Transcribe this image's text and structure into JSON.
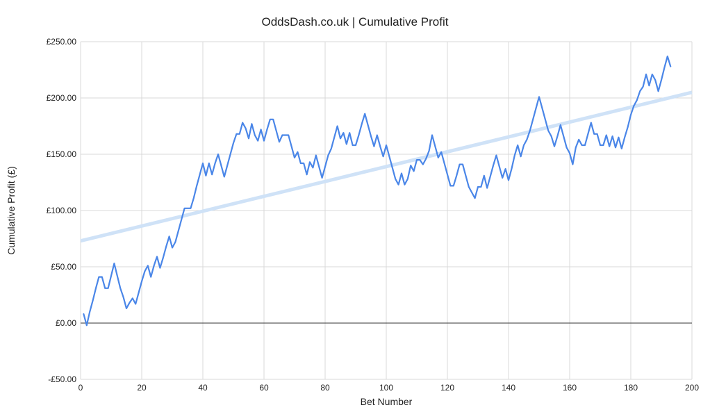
{
  "chart_data": {
    "type": "line",
    "title": "OddsDash.co.uk | Cumulative Profit",
    "xlabel": "Bet Number",
    "ylabel": "Cumulative Profit (£)",
    "xlim": [
      0,
      200
    ],
    "ylim": [
      -50,
      250
    ],
    "x_ticks": [
      0,
      20,
      40,
      60,
      80,
      100,
      120,
      140,
      160,
      180,
      200
    ],
    "x_tick_labels": [
      "0",
      "20",
      "40",
      "60",
      "80",
      "100",
      "120",
      "140",
      "160",
      "180",
      "200"
    ],
    "y_ticks": [
      -50,
      0,
      50,
      100,
      150,
      200,
      250
    ],
    "y_tick_labels": [
      "-£50.00",
      "£0.00",
      "£50.00",
      "£100.00",
      "£150.00",
      "£200.00",
      "£250.00"
    ],
    "grid": true,
    "legend": "none",
    "colors": {
      "line": "#4a86e8",
      "trend": "#cfe2f7",
      "grid": "#d9d9d9",
      "zero_line": "#333333"
    },
    "trendline": {
      "start": [
        0,
        73
      ],
      "end": [
        200,
        205
      ]
    },
    "series": [
      {
        "x": [
          1,
          2,
          3,
          4,
          5,
          6,
          7,
          8,
          9,
          10,
          11,
          12,
          13,
          14,
          15,
          16,
          17,
          18,
          19,
          20,
          21,
          22,
          23,
          24,
          25,
          26,
          27,
          28,
          29,
          30,
          31,
          32,
          33,
          34,
          35,
          36,
          37,
          38,
          39,
          40,
          41,
          42,
          43,
          44,
          45,
          46,
          47,
          48,
          49,
          50,
          51,
          52,
          53,
          54,
          55,
          56,
          57,
          58,
          59,
          60,
          61,
          62,
          63,
          64,
          65,
          66,
          67,
          68,
          69,
          70,
          71,
          72,
          73,
          74,
          75,
          76,
          77,
          78,
          79,
          80,
          81,
          82,
          83,
          84,
          85,
          86,
          87,
          88,
          89,
          90,
          91,
          92,
          93,
          94,
          95,
          96,
          97,
          98,
          99,
          100,
          101,
          102,
          103,
          104,
          105,
          106,
          107,
          108,
          109,
          110,
          111,
          112,
          113,
          114,
          115,
          116,
          117,
          118,
          119,
          120,
          121,
          122,
          123,
          124,
          125,
          126,
          127,
          128,
          129,
          130,
          131,
          132,
          133,
          134,
          135,
          136,
          137,
          138,
          139,
          140,
          141,
          142,
          143,
          144,
          145,
          146,
          147,
          148,
          149,
          150,
          151,
          152,
          153,
          154,
          155,
          156,
          157,
          158,
          159,
          160,
          161,
          162,
          163,
          164,
          165,
          166,
          167,
          168,
          169,
          170,
          171,
          172,
          173,
          174,
          175,
          176,
          177,
          178,
          179,
          180,
          181,
          182,
          183,
          184,
          185,
          186,
          187,
          188,
          189,
          190,
          191,
          192,
          193
        ],
        "y": [
          8,
          -2,
          10,
          20,
          31,
          41,
          41,
          31,
          31,
          42,
          53,
          42,
          31,
          23,
          13,
          18,
          22,
          17,
          27,
          37,
          46,
          51,
          41,
          51,
          59,
          49,
          58,
          68,
          77,
          67,
          72,
          82,
          92,
          102,
          102,
          102,
          111,
          122,
          132,
          142,
          131,
          142,
          132,
          142,
          150,
          140,
          130,
          140,
          150,
          160,
          168,
          168,
          178,
          173,
          164,
          177,
          167,
          162,
          172,
          162,
          172,
          181,
          181,
          171,
          161,
          167,
          167,
          167,
          157,
          147,
          152,
          142,
          142,
          132,
          143,
          138,
          149,
          139,
          129,
          139,
          149,
          155,
          165,
          175,
          164,
          169,
          159,
          169,
          158,
          158,
          167,
          177,
          186,
          176,
          166,
          157,
          167,
          157,
          148,
          158,
          148,
          138,
          128,
          123,
          133,
          123,
          128,
          140,
          135,
          145,
          145,
          141,
          146,
          153,
          167,
          157,
          147,
          152,
          142,
          132,
          122,
          122,
          131,
          141,
          141,
          131,
          121,
          116,
          111,
          121,
          121,
          131,
          120,
          130,
          140,
          149,
          139,
          129,
          137,
          127,
          137,
          149,
          158,
          148,
          158,
          163,
          171,
          181,
          191,
          201,
          191,
          181,
          171,
          166,
          157,
          166,
          176,
          166,
          156,
          151,
          141,
          156,
          163,
          158,
          158,
          168,
          178,
          168,
          168,
          158,
          158,
          167,
          157,
          166,
          156,
          165,
          155,
          165,
          174,
          185,
          193,
          198,
          206,
          210,
          221,
          211,
          221,
          216,
          206,
          216,
          227,
          237,
          228
        ]
      }
    ]
  }
}
